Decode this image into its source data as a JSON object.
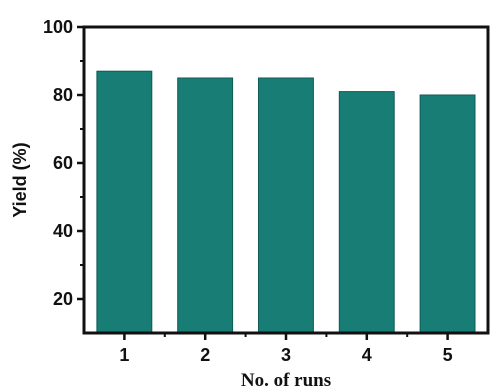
{
  "chart_data": {
    "type": "bar",
    "categories": [
      "1",
      "2",
      "3",
      "4",
      "5"
    ],
    "values": [
      87,
      85,
      85,
      81,
      80
    ],
    "xlabel": "No. of runs",
    "ylabel": "Yield (%)",
    "ylim": [
      10,
      100
    ],
    "yticks": [
      "20",
      "40",
      "60",
      "80",
      "100"
    ],
    "grid": false,
    "bar_color": "#187d74",
    "bar_edge_color": "#0f5a54"
  }
}
